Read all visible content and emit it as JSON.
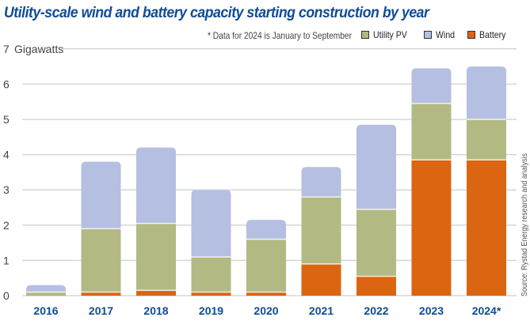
{
  "chart_data": {
    "type": "bar",
    "stacked": true,
    "title": "Utility-scale wind and battery capacity starting construction by year",
    "note": "* Data for 2024 is January to September",
    "ylabel": "Gigawatts",
    "xlabel": "",
    "ylim": [
      0,
      7
    ],
    "yticks": [
      0,
      1,
      2,
      3,
      4,
      5,
      6,
      7
    ],
    "grid": true,
    "legend_position": "top-right",
    "source": "Source: Rystad Energy research and analysis",
    "categories": [
      "2016",
      "2017",
      "2018",
      "2019",
      "2020",
      "2021",
      "2022",
      "2023",
      "2024*"
    ],
    "series": [
      {
        "name": "Battery",
        "color": "#dc6512",
        "values": [
          0.0,
          0.1,
          0.15,
          0.1,
          0.1,
          0.9,
          0.55,
          3.85,
          3.85
        ]
      },
      {
        "name": "Utility PV",
        "color": "#b3b982",
        "values": [
          0.1,
          1.8,
          1.9,
          1.0,
          1.5,
          1.9,
          1.9,
          1.6,
          1.15
        ]
      },
      {
        "name": "Wind",
        "color": "#b5bfe1",
        "values": [
          0.2,
          1.9,
          2.15,
          1.9,
          0.55,
          0.85,
          2.4,
          1.0,
          1.5
        ]
      }
    ]
  },
  "legend": [
    {
      "name": "Utility PV",
      "color": "#b3b982"
    },
    {
      "name": "Wind",
      "color": "#b5bfe1"
    },
    {
      "name": "Battery",
      "color": "#dc6512"
    }
  ]
}
